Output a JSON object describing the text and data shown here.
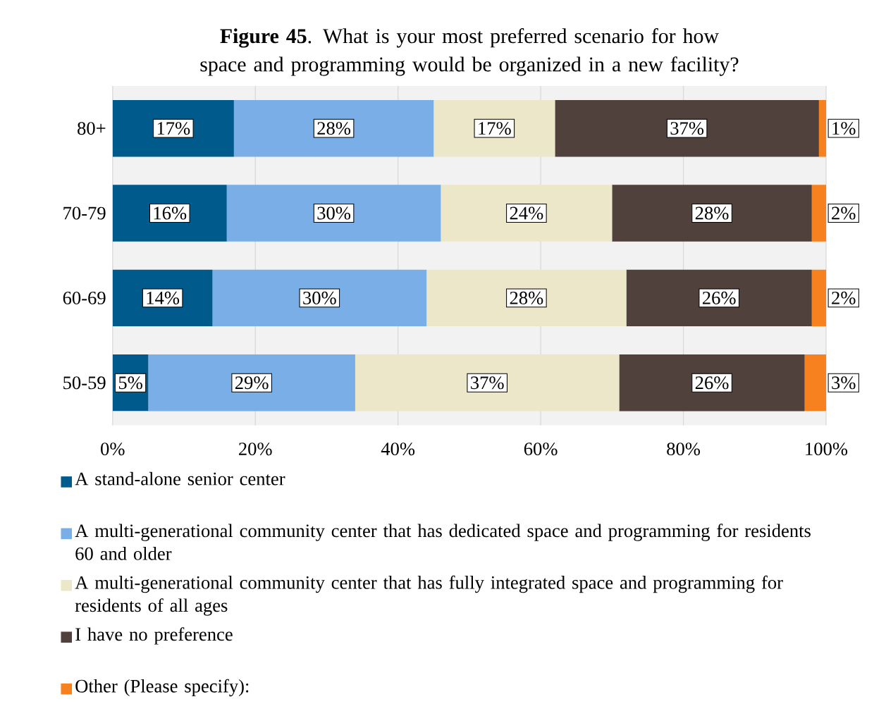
{
  "chart_data": {
    "type": "bar",
    "orientation": "horizontal",
    "stacked": true,
    "title": "**Figure 45**. What is your most preferred scenario for how space and programming would be organized in a new facility?",
    "categories": [
      "80+",
      "70-79",
      "60-69",
      "50-59"
    ],
    "series": [
      {
        "name": "A stand-alone senior center",
        "color": "#005a8c",
        "values": [
          17,
          16,
          14,
          5
        ],
        "value_labels": [
          "17%",
          "16%",
          "14%",
          "5%"
        ]
      },
      {
        "name": "A multi-generational community center that has dedicated space and programming for residents 60 and older",
        "color": "#7aaee6",
        "values": [
          28,
          30,
          30,
          29
        ],
        "value_labels": [
          "28%",
          "30%",
          "30%",
          "29%"
        ]
      },
      {
        "name": "A multi-generational community center that has fully integrated space and programming for residents of all ages",
        "color": "#ede7c9",
        "values": [
          17,
          24,
          28,
          37
        ],
        "value_labels": [
          "17%",
          "24%",
          "28%",
          "37%"
        ]
      },
      {
        "name": "I have no preference",
        "color": "#50413c",
        "values": [
          37,
          28,
          26,
          26
        ],
        "value_labels": [
          "37%",
          "28%",
          "26%",
          "26%"
        ]
      },
      {
        "name": "Other (Please specify):",
        "color": "#f7801f",
        "values": [
          1,
          2,
          2,
          3
        ],
        "value_labels": [
          "1%",
          "2%",
          "2%",
          "3%"
        ]
      }
    ],
    "xlim": [
      0,
      100
    ],
    "xticks": [
      {
        "value": 0,
        "label": "0%"
      },
      {
        "value": 20,
        "label": "20%"
      },
      {
        "value": 40,
        "label": "40%"
      },
      {
        "value": 60,
        "label": "60%"
      },
      {
        "value": 80,
        "label": "80%"
      },
      {
        "value": 100,
        "label": "100%"
      }
    ],
    "grid": "x",
    "legend": "bottom"
  }
}
